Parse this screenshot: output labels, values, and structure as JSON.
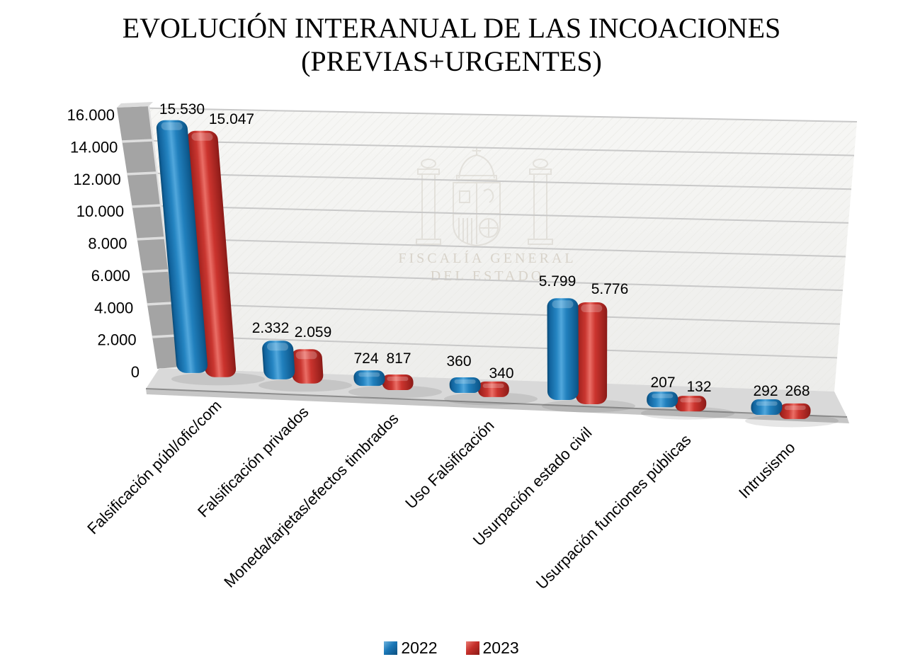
{
  "title": {
    "line1": "EVOLUCIÓN INTERANUAL DE LAS INCOACIONES",
    "line2": "(PREVIAS+URGENTES)"
  },
  "watermark": {
    "line1": "FISCALÍA GENERAL",
    "line2": "DEL ESTADO"
  },
  "legend": {
    "position": "bottom"
  },
  "chart_data": {
    "type": "bar",
    "style": "3d-rounded-columns",
    "title": "EVOLUCIÓN INTERANUAL DE LAS INCOACIONES (PREVIAS+URGENTES)",
    "categories": [
      "Falsificación públ/ofic/com",
      "Falsificación privados",
      "Moneda/tarjetas/efectos timbrados",
      "Uso Falsificación",
      "Usurpación estado civil",
      "Usurpación funciones públicas",
      "Intrusismo"
    ],
    "series": [
      {
        "name": "2022",
        "color": "#1b78b8",
        "values": [
          15530,
          2332,
          724,
          360,
          5799,
          207,
          292
        ],
        "labels": [
          "15.530",
          "2.332",
          "724",
          "360",
          "5.799",
          "207",
          "292"
        ]
      },
      {
        "name": "2023",
        "color": "#c5302b",
        "values": [
          15047,
          2059,
          817,
          340,
          5776,
          132,
          268
        ],
        "labels": [
          "15.047",
          "2.059",
          "817",
          "340",
          "5.776",
          "132",
          "268"
        ]
      }
    ],
    "y_axis": {
      "min": 0,
      "max": 16000,
      "step": 2000,
      "tick_labels": [
        "0",
        "2.000",
        "4.000",
        "6.000",
        "8.000",
        "10.000",
        "12.000",
        "14.000",
        "16.000"
      ]
    },
    "grid": true,
    "legend_entries": [
      "2022",
      "2023"
    ]
  }
}
